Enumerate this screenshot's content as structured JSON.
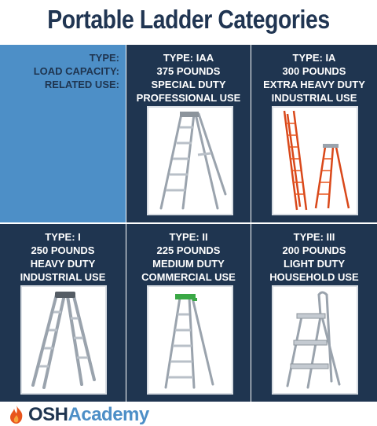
{
  "title": "Portable Ladder Categories",
  "key": {
    "type_label": "TYPE:",
    "load_label": "LOAD CAPACITY:",
    "use_label": "RELATED USE:"
  },
  "categories": [
    {
      "type": "TYPE: IAA",
      "load": "375 POUNDS",
      "use1": "SPECIAL DUTY",
      "use2": "PROFESSIONAL USE",
      "image": "stepladder-icon"
    },
    {
      "type": "TYPE: IA",
      "load": "300 POUNDS",
      "use1": "EXTRA HEAVY DUTY",
      "use2": "INDUSTRIAL USE",
      "image": "extension-ladder-icon"
    },
    {
      "type": "TYPE: I",
      "load": "250 POUNDS",
      "use1": "HEAVY DUTY",
      "use2": "INDUSTRIAL USE",
      "image": "multi-position-ladder-icon"
    },
    {
      "type": "TYPE: II",
      "load": "225 POUNDS",
      "use1": "MEDIUM DUTY",
      "use2": "COMMERCIAL USE",
      "image": "stepladder-icon"
    },
    {
      "type": "TYPE: III",
      "load": "200 POUNDS",
      "use1": "LIGHT DUTY",
      "use2": "HOUSEHOLD USE",
      "image": "step-stool-icon"
    }
  ],
  "logo": {
    "part1": "OSH",
    "part2": "Academy",
    "icon": "flame-icon"
  },
  "colors": {
    "navy": "#1f3550",
    "blue": "#4d8fc7",
    "ladder_orange": "#e8541c"
  }
}
